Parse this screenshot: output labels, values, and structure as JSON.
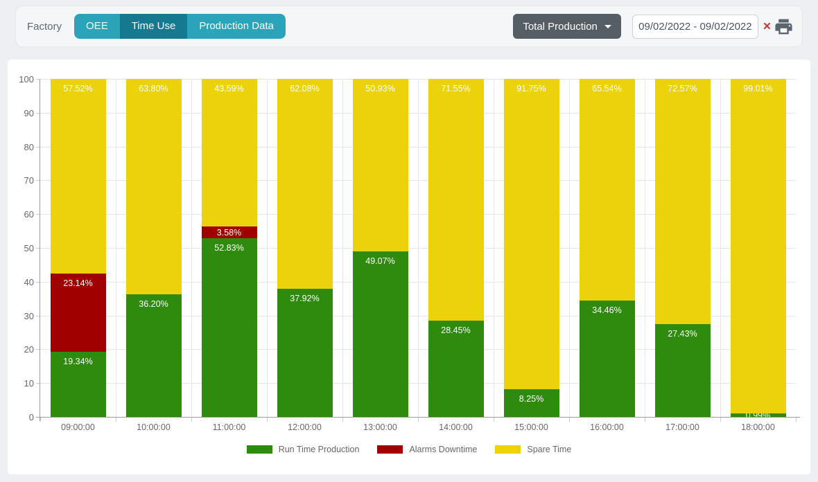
{
  "header": {
    "factory_label": "Factory",
    "tabs": [
      {
        "label": "OEE",
        "active": false
      },
      {
        "label": "Time Use",
        "active": true
      },
      {
        "label": "Production Data",
        "active": false
      }
    ],
    "dropdown_label": "Total Production",
    "date_range_value": "09/02/2022 - 09/02/2022",
    "icons": {
      "clear": "×",
      "printer": "printer-icon",
      "dropdown_caret": "caret-down-icon"
    },
    "colors": {
      "tab_bg": "#2ba4ba",
      "tab_active_bg": "#16798f",
      "dropdown_bg": "#565e65",
      "clear_red": "#d63030",
      "printer_gray": "#5b6670"
    }
  },
  "chart_data": {
    "type": "bar",
    "stacked": true,
    "title": "",
    "xlabel": "",
    "ylabel": "",
    "ylim": [
      0,
      100
    ],
    "ytick_step": 10,
    "grid": true,
    "legend_position": "bottom",
    "value_suffix": "%",
    "categories": [
      "09:00:00",
      "10:00:00",
      "11:00:00",
      "12:00:00",
      "13:00:00",
      "14:00:00",
      "15:00:00",
      "16:00:00",
      "17:00:00",
      "18:00:00"
    ],
    "series": [
      {
        "name": "Run Time Production",
        "color": "#2e8b0e",
        "values": [
          19.34,
          36.2,
          52.83,
          37.92,
          49.07,
          28.45,
          8.25,
          34.46,
          27.43,
          0.99
        ]
      },
      {
        "name": "Alarms Downtime",
        "color": "#a00000",
        "values": [
          23.14,
          0,
          3.58,
          0,
          0,
          0,
          0,
          0,
          0,
          0
        ]
      },
      {
        "name": "Spare Time",
        "color": "#ecd20b",
        "values": [
          57.52,
          63.8,
          43.59,
          62.08,
          50.93,
          71.55,
          91.75,
          65.54,
          72.57,
          99.01
        ]
      }
    ]
  }
}
